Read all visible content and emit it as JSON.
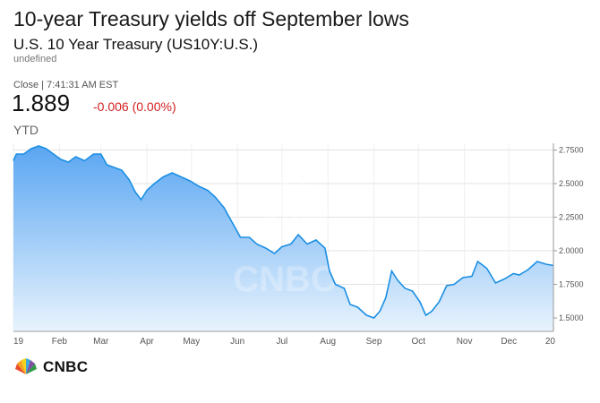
{
  "headline": "10-year Treasury yields off September lows",
  "security": {
    "name": "U.S. 10 Year Treasury (US10Y:U.S.)",
    "sub": "undefined"
  },
  "quote": {
    "close_label": "Close | 7:41:31 AM EST",
    "price": "1.889",
    "change": "-0.006 (0.00%)"
  },
  "range_label": "YTD",
  "brand": {
    "name": "CNBC",
    "watermark": "CNBC"
  },
  "colors": {
    "line": "#1a8fe3",
    "fill_top": "#5aa6f2",
    "fill_bottom": "#e8f3fd",
    "negative": "#d21f1f"
  },
  "chart_data": {
    "type": "area",
    "title": "",
    "xlabel": "",
    "ylabel": "",
    "ylim": [
      1.4,
      2.8
    ],
    "y_ticks": [
      "2.7500",
      "2.5000",
      "2.2500",
      "2.0000",
      "1.7500",
      "1.5000"
    ],
    "x_ticks": [
      "19",
      "Feb",
      "Mar",
      "Apr",
      "May",
      "Jun",
      "Jul",
      "Aug",
      "Sep",
      "Oct",
      "Nov",
      "Dec",
      "20"
    ],
    "x": [
      "2019-01-01",
      "2019-01-03",
      "2019-01-08",
      "2019-01-13",
      "2019-01-18",
      "2019-01-23",
      "2019-01-28",
      "2019-02-02",
      "2019-02-07",
      "2019-02-12",
      "2019-02-18",
      "2019-02-24",
      "2019-03-01",
      "2019-03-05",
      "2019-03-10",
      "2019-03-15",
      "2019-03-20",
      "2019-03-24",
      "2019-03-28",
      "2019-04-01",
      "2019-04-06",
      "2019-04-12",
      "2019-04-18",
      "2019-04-24",
      "2019-04-30",
      "2019-05-06",
      "2019-05-12",
      "2019-05-17",
      "2019-05-23",
      "2019-05-28",
      "2019-06-03",
      "2019-06-09",
      "2019-06-14",
      "2019-06-20",
      "2019-06-26",
      "2019-07-01",
      "2019-07-07",
      "2019-07-12",
      "2019-07-18",
      "2019-07-24",
      "2019-07-30",
      "2019-08-02",
      "2019-08-06",
      "2019-08-12",
      "2019-08-16",
      "2019-08-21",
      "2019-08-27",
      "2019-09-01",
      "2019-09-05",
      "2019-09-09",
      "2019-09-13",
      "2019-09-17",
      "2019-09-22",
      "2019-09-27",
      "2019-10-02",
      "2019-10-06",
      "2019-10-10",
      "2019-10-15",
      "2019-10-20",
      "2019-10-25",
      "2019-10-31",
      "2019-11-06",
      "2019-11-10",
      "2019-11-16",
      "2019-11-22",
      "2019-11-28",
      "2019-12-04",
      "2019-12-08",
      "2019-12-14",
      "2019-12-20",
      "2019-12-26",
      "2019-12-31"
    ],
    "series": [
      {
        "values": [
          2.67,
          2.72,
          2.72,
          2.76,
          2.78,
          2.76,
          2.72,
          2.68,
          2.66,
          2.7,
          2.67,
          2.72,
          2.72,
          2.64,
          2.62,
          2.6,
          2.53,
          2.44,
          2.38,
          2.45,
          2.5,
          2.55,
          2.58,
          2.55,
          2.52,
          2.48,
          2.45,
          2.4,
          2.32,
          2.22,
          2.1,
          2.1,
          2.05,
          2.02,
          1.98,
          2.03,
          2.05,
          2.12,
          2.05,
          2.08,
          2.02,
          1.85,
          1.75,
          1.72,
          1.6,
          1.58,
          1.52,
          1.5,
          1.55,
          1.65,
          1.85,
          1.78,
          1.72,
          1.7,
          1.62,
          1.52,
          1.55,
          1.62,
          1.74,
          1.75,
          1.8,
          1.81,
          1.92,
          1.87,
          1.76,
          1.79,
          1.83,
          1.82,
          1.86,
          1.92,
          1.9,
          1.89
        ]
      }
    ]
  }
}
